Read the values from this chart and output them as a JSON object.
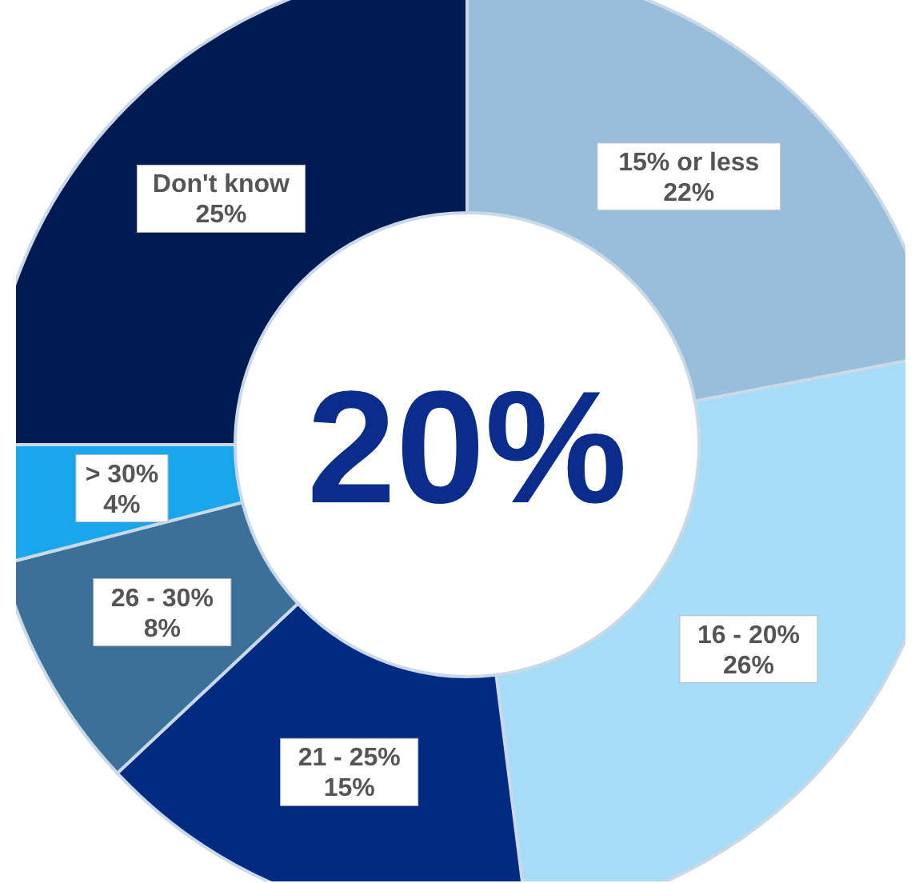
{
  "chart_data": {
    "type": "donut",
    "categories": [
      "15% or less",
      "16 - 20%",
      "21 - 25%",
      "26 - 30%",
      "> 30%",
      "Don't know"
    ],
    "values": [
      22,
      26,
      15,
      8,
      4,
      25
    ],
    "colors": [
      "#98bedb",
      "#a6dcf5",
      "#012a82",
      "#3b7099",
      "#1aa6ea",
      "#001a52"
    ],
    "value_labels": [
      "22%",
      "26%",
      "15%",
      "8%",
      "4%",
      "25%"
    ],
    "annotations": [
      "20%"
    ]
  }
}
